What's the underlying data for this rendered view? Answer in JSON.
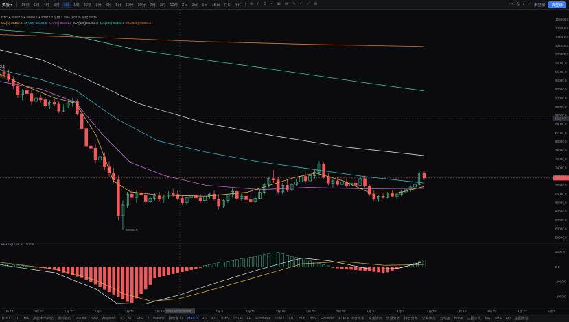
{
  "toolbar": {
    "symbol": "美股 ▾",
    "timeframes": [
      "15分",
      "1时",
      "4时",
      "8时",
      "1日",
      "1周",
      "30秒",
      "1分",
      "3分",
      "5分",
      "10分",
      "30分",
      "2时",
      "3时",
      "12时",
      "2日",
      "3日",
      "5日",
      "15日",
      "月K",
      "年K"
    ],
    "active_timeframe": "1日",
    "tools": [
      "⊕",
      "ƒ",
      "⚙",
      "⌁",
      "▣",
      "▤",
      "✎",
      "↶",
      "⤢",
      "⊞"
    ],
    "right_items": [
      "05",
      "⎘",
      "⬇",
      "⤢",
      "未登录"
    ],
    "login_label": "去登录"
  },
  "indicator_line": "BTC  ●  65987.1  ●  66498.1  ●  57977.3  涨幅 1.38% (903.3) 振幅 2.53%",
  "ma_line": [
    {
      "text": "MA(5) 75462.3",
      "color": "#e0b040"
    },
    {
      "text": "MA(60) 83131.5",
      "color": "#2fb8c8"
    },
    {
      "text": "MA(90) 85251.3",
      "color": "#c06ad0"
    },
    {
      "text": "MA(120) 85463.3",
      "color": "#d0d0d0"
    },
    {
      "text": "MA(200) 95363.8",
      "color": "#3ac8a0"
    },
    {
      "text": "MA(360) 99350.3",
      "color": "#e07a30"
    }
  ],
  "left_tags": [
    "3.1",
    "湾"
  ],
  "macd_label": "MACD(12,26,9) 1000.6",
  "y_axis": [
    "108000.0",
    "106000.0",
    "104000.0",
    "102000.0",
    "100000.0",
    "98000.0",
    "96000.0",
    "94000.0",
    "92000.0",
    "90000.0",
    "88000.0",
    "86000.0",
    "84000.0",
    "82000.0",
    "80000.0",
    "78000.0",
    "76000.0",
    "74000.0",
    "72000.0",
    "70000.0",
    "68000.0",
    "66000.0",
    "64000.0",
    "62000.0",
    "60000.0",
    "58000.0"
  ],
  "y_tag_mid": "85264.7",
  "y_tag_last": "71649.9",
  "macd_axis": [
    "2000.0",
    "0.0",
    "-2000.0",
    "-4000.0"
  ],
  "low_label": "59800.0",
  "x_axis": [
    "1月 17",
    "1月 22",
    "1月 27",
    "2月 4",
    "2月 11",
    "2月 18",
    "2月 26",
    "3月 4",
    "3月 11",
    "3月 16",
    "3月 20",
    "3月 28",
    "4月 3",
    "4月 7",
    "4月 12",
    "4月 16",
    "4月 22",
    "4月 27",
    "5月 2"
  ],
  "crosshair_date": "2026-02-20 00:00",
  "bottom_bar": [
    "BOLL",
    "TD",
    "MA",
    "多空大单对比",
    "爆料合约",
    "Volume",
    "SAR",
    "Alligator",
    "DC",
    "KC",
    "ENE",
    "/",
    "Volume",
    "持仓量 OI",
    "MACD",
    "RSI",
    "KDJ",
    "OBV",
    "LSUR",
    "FR",
    "FundRate",
    "TTNU",
    "TTU",
    "HLB",
    "BSV",
    "Fibolliner",
    "FTROC持仓成本",
    "资金流向",
    "交易分析",
    "持仓分布",
    "交易热力",
    "五笔画",
    "Boole",
    "主图公式",
    "MA",
    "ZMA",
    "AO",
    "主图属性"
  ],
  "bottom_active": "MACD",
  "candles_note": "price-scale candles encoded below",
  "colors": {
    "up": "#3cc8a0",
    "down": "#f0595c",
    "accent": "#3d7cf5"
  }
}
